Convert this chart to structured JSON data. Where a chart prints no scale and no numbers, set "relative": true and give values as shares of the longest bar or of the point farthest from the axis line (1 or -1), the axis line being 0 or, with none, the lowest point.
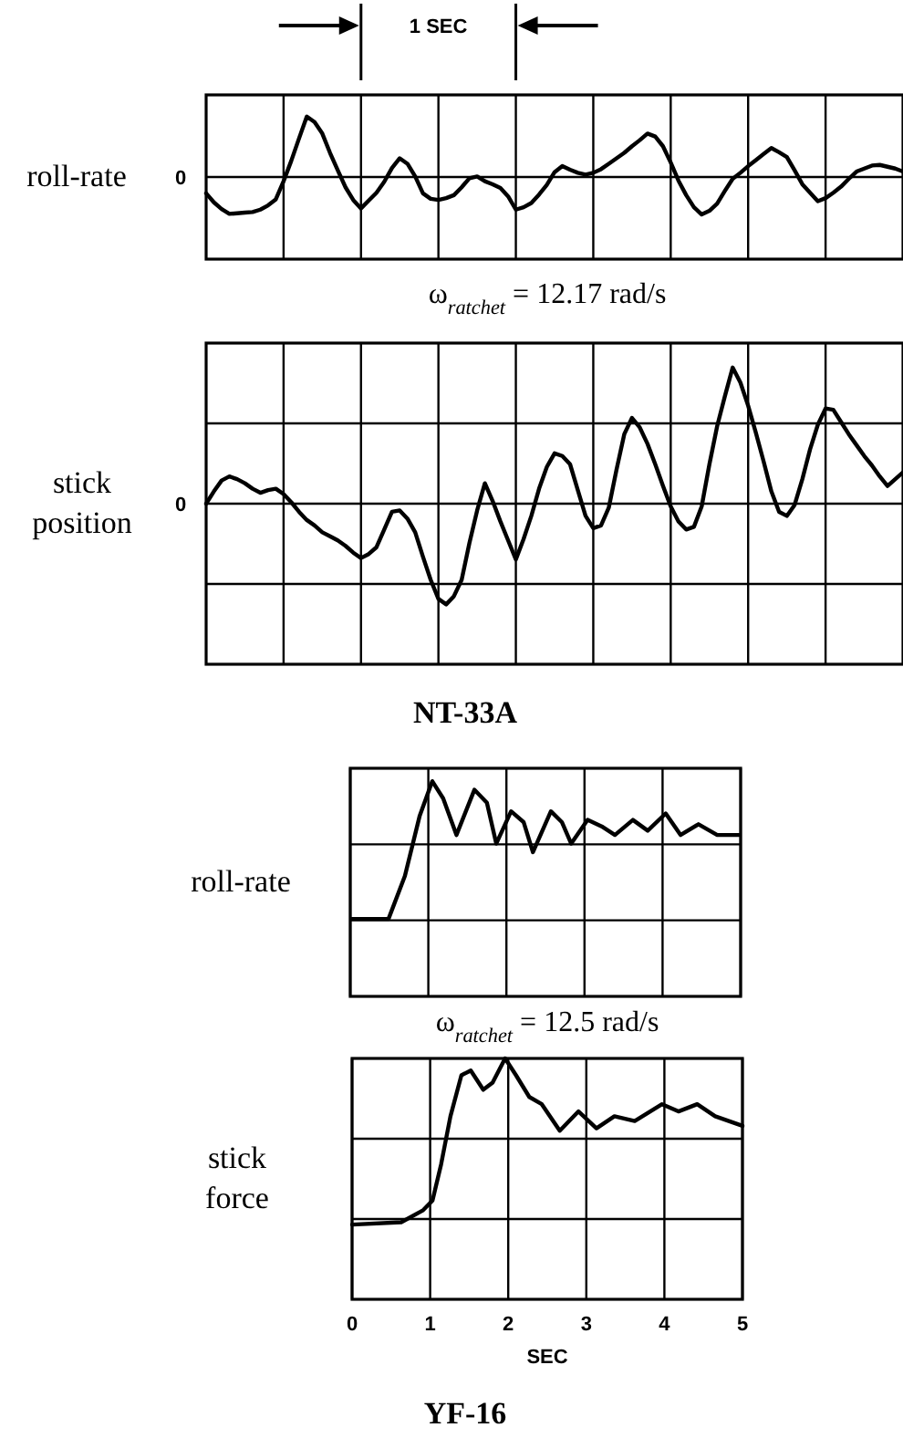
{
  "chart_data": [
    {
      "type": "line",
      "relative": true,
      "ylabel": "roll-rate",
      "grid": true,
      "tick_labels": false,
      "categories": [
        null,
        null,
        null,
        null,
        null,
        null,
        null,
        null,
        null,
        null,
        null,
        null,
        null,
        null,
        null,
        null,
        null,
        null,
        null,
        null,
        null,
        null,
        null,
        null,
        null,
        null,
        null,
        null,
        null,
        null,
        null,
        null,
        null,
        null,
        null,
        null,
        null,
        null,
        null,
        null,
        null,
        null,
        null,
        null,
        null,
        null,
        null,
        null,
        null,
        null,
        null,
        null,
        null,
        null,
        null,
        null,
        null,
        null,
        null,
        null,
        null,
        null,
        null,
        null,
        null,
        null,
        null,
        null,
        null,
        null,
        null,
        null,
        null,
        null,
        null,
        null,
        null,
        null,
        null,
        null,
        null,
        null,
        null,
        null,
        null,
        null,
        null,
        null,
        null,
        null,
        null
      ],
      "annotations": [
        "1 SEC",
        "ω$_{ratchet}$ = 12.17 rad/s",
        "0"
      ],
      "series": [
        {
          "color": "#000000",
          "values": [
            -0.27,
            -0.42,
            -0.53,
            -0.61,
            -0.6,
            -0.59,
            -0.58,
            -0.54,
            -0.47,
            -0.37,
            -0.07,
            0.27,
            0.64,
            1.0,
            0.91,
            0.72,
            0.4,
            0.11,
            -0.17,
            -0.38,
            -0.52,
            -0.39,
            -0.26,
            -0.08,
            0.15,
            0.31,
            0.22,
            0.01,
            -0.27,
            -0.36,
            -0.38,
            -0.35,
            -0.3,
            -0.17,
            -0.02,
            0.01,
            -0.07,
            -0.12,
            -0.18,
            -0.32,
            -0.54,
            -0.5,
            -0.43,
            -0.29,
            -0.13,
            0.08,
            0.18,
            0.12,
            0.07,
            0.04,
            0.07,
            0.13,
            0.22,
            0.31,
            0.4,
            0.51,
            0.61,
            0.72,
            0.67,
            0.51,
            0.24,
            -0.06,
            -0.3,
            -0.5,
            -0.62,
            -0.56,
            -0.44,
            -0.23,
            -0.03,
            0.07,
            0.18,
            0.28,
            0.38,
            0.48,
            0.41,
            0.33,
            0.11,
            -0.12,
            -0.26,
            -0.4,
            -0.35,
            -0.26,
            -0.16,
            -0.03,
            0.09,
            0.14,
            0.19,
            0.2,
            0.17,
            0.14,
            0.09
          ]
        }
      ]
    },
    {
      "type": "line",
      "relative": true,
      "title": "NT-33A",
      "ylabel": "stick position",
      "grid": true,
      "tick_labels": false,
      "categories": [
        null,
        null,
        null,
        null,
        null,
        null,
        null,
        null,
        null,
        null,
        null,
        null,
        null,
        null,
        null,
        null,
        null,
        null,
        null,
        null,
        null,
        null,
        null,
        null,
        null,
        null,
        null,
        null,
        null,
        null,
        null,
        null,
        null,
        null,
        null,
        null,
        null,
        null,
        null,
        null,
        null,
        null,
        null,
        null,
        null,
        null,
        null,
        null,
        null,
        null,
        null,
        null,
        null,
        null,
        null,
        null,
        null,
        null,
        null,
        null,
        null,
        null,
        null,
        null,
        null,
        null,
        null,
        null,
        null,
        null,
        null,
        null,
        null,
        null,
        null,
        null,
        null,
        null,
        null,
        null,
        null,
        null,
        null,
        null,
        null,
        null,
        null,
        null,
        null,
        null,
        null
      ],
      "annotations": [
        "0"
      ],
      "series": [
        {
          "color": "#000000",
          "values": [
            0,
            0.09,
            0.17,
            0.2,
            0.18,
            0.15,
            0.11,
            0.08,
            0.1,
            0.11,
            0.07,
            0.01,
            -0.06,
            -0.12,
            -0.16,
            -0.21,
            -0.24,
            -0.27,
            -0.31,
            -0.36,
            -0.4,
            -0.37,
            -0.32,
            -0.19,
            -0.06,
            -0.05,
            -0.11,
            -0.21,
            -0.39,
            -0.56,
            -0.7,
            -0.74,
            -0.68,
            -0.56,
            -0.29,
            -0.05,
            0.15,
            0.02,
            -0.13,
            -0.27,
            -0.41,
            -0.26,
            -0.09,
            0.11,
            0.27,
            0.37,
            0.35,
            0.29,
            0.1,
            -0.09,
            -0.18,
            -0.16,
            -0.03,
            0.25,
            0.51,
            0.63,
            0.56,
            0.44,
            0.29,
            0.13,
            -0.02,
            -0.13,
            -0.19,
            -0.17,
            -0.02,
            0.29,
            0.57,
            0.79,
            1.0,
            0.89,
            0.72,
            0.52,
            0.31,
            0.09,
            -0.06,
            -0.09,
            -0.01,
            0.18,
            0.4,
            0.58,
            0.7,
            0.69,
            0.6,
            0.51,
            0.43,
            0.35,
            0.28,
            0.2,
            0.13,
            0.18,
            0.23
          ]
        }
      ]
    },
    {
      "type": "line",
      "relative": true,
      "ylabel": "roll-rate",
      "grid": true,
      "tick_labels": false,
      "xlim": [
        0,
        5
      ],
      "xticks": [
        0,
        1,
        2,
        3,
        4,
        5
      ],
      "annotations": [
        "ω$_{ratchet}$ = 12.5 rad/s"
      ],
      "series": [
        {
          "color": "#000000",
          "x": [
            0.02,
            0.49,
            0.7,
            0.89,
            1.05,
            1.19,
            1.36,
            1.59,
            1.75,
            1.87,
            2.06,
            2.22,
            2.34,
            2.57,
            2.71,
            2.83,
            3.04,
            3.22,
            3.39,
            3.62,
            3.81,
            4.04,
            4.23,
            4.46,
            4.7,
            4.98
          ],
          "values": [
            0.36,
            0.36,
            0.56,
            0.84,
            1.0,
            0.92,
            0.75,
            0.96,
            0.9,
            0.71,
            0.86,
            0.81,
            0.67,
            0.86,
            0.81,
            0.71,
            0.82,
            0.79,
            0.75,
            0.82,
            0.77,
            0.85,
            0.75,
            0.8,
            0.75,
            0.75
          ]
        }
      ]
    },
    {
      "type": "line",
      "relative": true,
      "title": "YF-16",
      "ylabel": "stick force",
      "xlabel": "SEC",
      "grid": true,
      "tick_labels": "x",
      "xlim": [
        0,
        5
      ],
      "xticks": [
        0,
        1,
        2,
        3,
        4,
        5
      ],
      "series": [
        {
          "color": "#000000",
          "x": [
            0,
            0.63,
            0.91,
            1.03,
            1.14,
            1.26,
            1.4,
            1.52,
            1.68,
            1.8,
            1.96,
            2.1,
            2.27,
            2.43,
            2.66,
            2.9,
            3.13,
            3.36,
            3.62,
            3.97,
            4.18,
            4.42,
            4.65,
            5.0
          ],
          "values": [
            0.31,
            0.32,
            0.37,
            0.41,
            0.56,
            0.76,
            0.93,
            0.95,
            0.87,
            0.9,
            1.0,
            0.93,
            0.84,
            0.81,
            0.7,
            0.78,
            0.71,
            0.76,
            0.74,
            0.81,
            0.78,
            0.81,
            0.76,
            0.72
          ]
        }
      ]
    }
  ]
}
